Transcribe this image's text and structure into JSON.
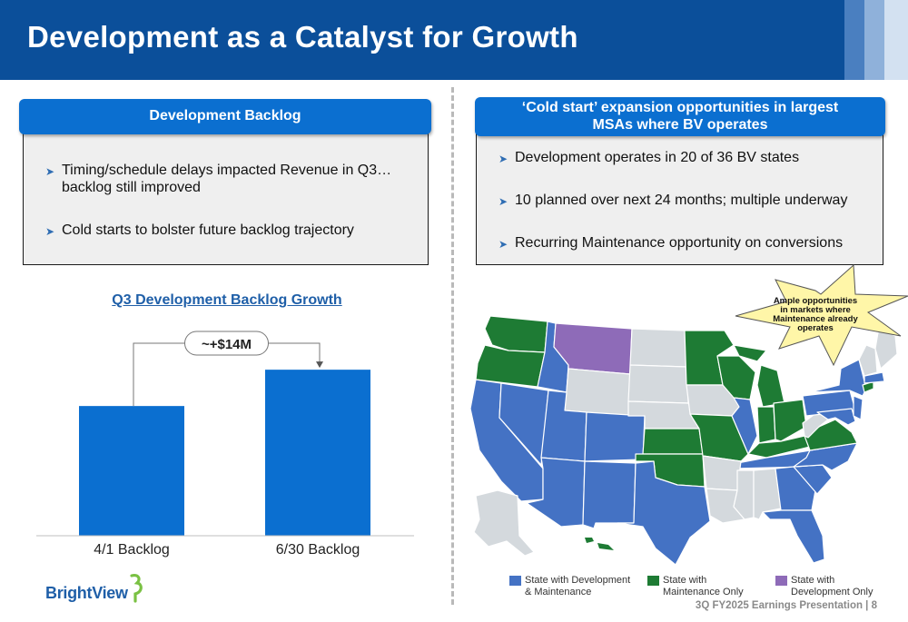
{
  "slide": {
    "title": "Development as a Catalyst for Growth",
    "footer": "3Q FY2025 Earnings Presentation | 8",
    "logo_text": "BrightView"
  },
  "left_panel": {
    "header": "Development Backlog",
    "bullets": [
      "Timing/schedule delays impacted Revenue in Q3…backlog still improved",
      "Cold starts to bolster future backlog trajectory"
    ]
  },
  "right_panel": {
    "header": "‘Cold start’ expansion opportunities in largest MSAs where BV operates",
    "bullets": [
      "Development operates in 20 of 36 BV states",
      "10 planned over next 24 months; multiple underway",
      "Recurring Maintenance opportunity on conversions"
    ]
  },
  "chart_data": {
    "type": "bar",
    "title": "Q3 Development Backlog Growth",
    "categories": [
      "4/1 Backlog",
      "6/30 Backlog"
    ],
    "values": [
      100,
      128
    ],
    "ylim": [
      0,
      140
    ],
    "annotation": "~+$14M",
    "grid": false,
    "bar_color": "#0b6fd0"
  },
  "map": {
    "callout": "Ample opportunities in markets where Maintenance already operates",
    "legend": [
      {
        "label": "State with Development & Maintenance",
        "color": "#4472c4"
      },
      {
        "label": "State with Maintenance Only",
        "color": "#1e7b34"
      },
      {
        "label": "State with Development Only",
        "color": "#8e6bb8"
      }
    ],
    "colors": {
      "dev_maint": "#4472c4",
      "maint_only": "#1e7b34",
      "dev_only": "#8e6bb8",
      "none": "#d4d9dd"
    }
  }
}
